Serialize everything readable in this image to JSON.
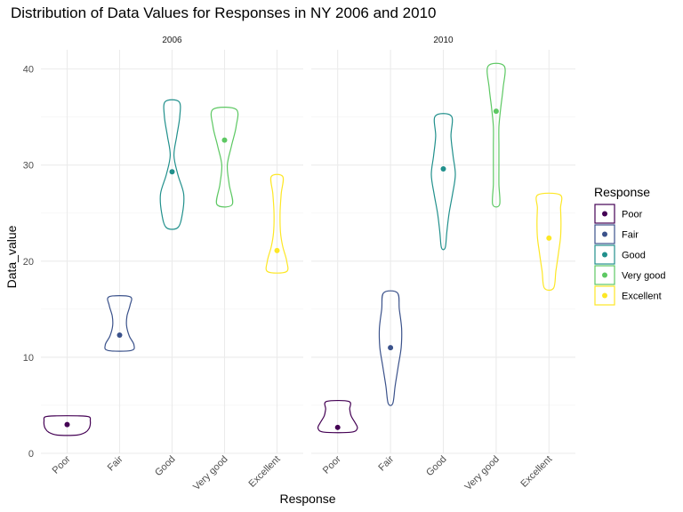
{
  "chart_data": {
    "type": "violin",
    "title": "Distribution of Data Values for Responses in NY 2006 and 2010",
    "xlabel": "Response",
    "ylabel": "Data_value",
    "ylim": [
      0,
      42
    ],
    "yticks": [
      0,
      10,
      20,
      30,
      40
    ],
    "grid": true,
    "legend_position": "right",
    "legend_title": "Response",
    "categories": [
      "Poor",
      "Fair",
      "Good",
      "Very good",
      "Excellent"
    ],
    "colors": {
      "Poor": "#440154",
      "Fair": "#3b528b",
      "Good": "#21908c",
      "Very good": "#5dc863",
      "Excellent": "#fde725"
    },
    "panels": [
      {
        "label": "2006",
        "violins": [
          {
            "category": "Poor",
            "median": 3.0,
            "profile": [
              [
                1.9,
                0.42
              ],
              [
                2.2,
                0.8
              ],
              [
                2.6,
                0.95
              ],
              [
                3.0,
                1.0
              ],
              [
                3.4,
                1.0
              ],
              [
                3.8,
                0.95
              ],
              [
                3.9,
                0.45
              ]
            ]
          },
          {
            "category": "Fair",
            "median": 12.3,
            "profile": [
              [
                10.7,
                0.5
              ],
              [
                11.3,
                0.62
              ],
              [
                12.2,
                0.42
              ],
              [
                13.3,
                0.3
              ],
              [
                14.3,
                0.32
              ],
              [
                15.4,
                0.45
              ],
              [
                16.3,
                0.45
              ]
            ]
          },
          {
            "category": "Good",
            "median": 29.3,
            "profile": [
              [
                23.5,
                0.25
              ],
              [
                25.0,
                0.45
              ],
              [
                27.0,
                0.5
              ],
              [
                29.0,
                0.25
              ],
              [
                31.0,
                0.08
              ],
              [
                33.0,
                0.2
              ],
              [
                35.0,
                0.33
              ],
              [
                36.6,
                0.3
              ]
            ]
          },
          {
            "category": "Very good",
            "median": 32.6,
            "profile": [
              [
                25.9,
                0.33
              ],
              [
                28.0,
                0.2
              ],
              [
                30.0,
                0.12
              ],
              [
                32.0,
                0.3
              ],
              [
                34.0,
                0.5
              ],
              [
                35.8,
                0.5
              ]
            ]
          },
          {
            "category": "Excellent",
            "median": 21.1,
            "profile": [
              [
                18.9,
                0.4
              ],
              [
                20.0,
                0.42
              ],
              [
                21.5,
                0.25
              ],
              [
                23.0,
                0.15
              ],
              [
                25.0,
                0.13
              ],
              [
                27.0,
                0.18
              ],
              [
                28.8,
                0.25
              ]
            ]
          }
        ]
      },
      {
        "label": "2010",
        "violins": [
          {
            "category": "Poor",
            "median": 2.7,
            "profile": [
              [
                2.2,
                0.58
              ],
              [
                2.6,
                0.85
              ],
              [
                3.2,
                0.75
              ],
              [
                3.9,
                0.58
              ],
              [
                4.6,
                0.52
              ],
              [
                5.4,
                0.48
              ]
            ]
          },
          {
            "category": "Fair",
            "median": 11.0,
            "profile": [
              [
                5.2,
                0.1
              ],
              [
                7.0,
                0.2
              ],
              [
                9.0,
                0.33
              ],
              [
                11.0,
                0.46
              ],
              [
                13.0,
                0.48
              ],
              [
                15.0,
                0.38
              ],
              [
                16.7,
                0.3
              ]
            ]
          },
          {
            "category": "Good",
            "median": 29.6,
            "profile": [
              [
                21.4,
                0.08
              ],
              [
                23.0,
                0.15
              ],
              [
                25.0,
                0.25
              ],
              [
                27.0,
                0.4
              ],
              [
                29.0,
                0.52
              ],
              [
                31.0,
                0.42
              ],
              [
                33.0,
                0.33
              ],
              [
                35.1,
                0.35
              ]
            ]
          },
          {
            "category": "Very good",
            "median": 35.6,
            "profile": [
              [
                25.9,
                0.15
              ],
              [
                28.0,
                0.12
              ],
              [
                30.0,
                0.12
              ],
              [
                32.0,
                0.12
              ],
              [
                34.0,
                0.12
              ],
              [
                36.0,
                0.2
              ],
              [
                38.0,
                0.3
              ],
              [
                40.3,
                0.35
              ]
            ]
          },
          {
            "category": "Excellent",
            "median": 22.4,
            "profile": [
              [
                17.2,
                0.2
              ],
              [
                19.0,
                0.3
              ],
              [
                21.0,
                0.42
              ],
              [
                22.5,
                0.5
              ],
              [
                24.0,
                0.52
              ],
              [
                25.5,
                0.5
              ],
              [
                26.9,
                0.48
              ]
            ]
          }
        ]
      }
    ]
  }
}
